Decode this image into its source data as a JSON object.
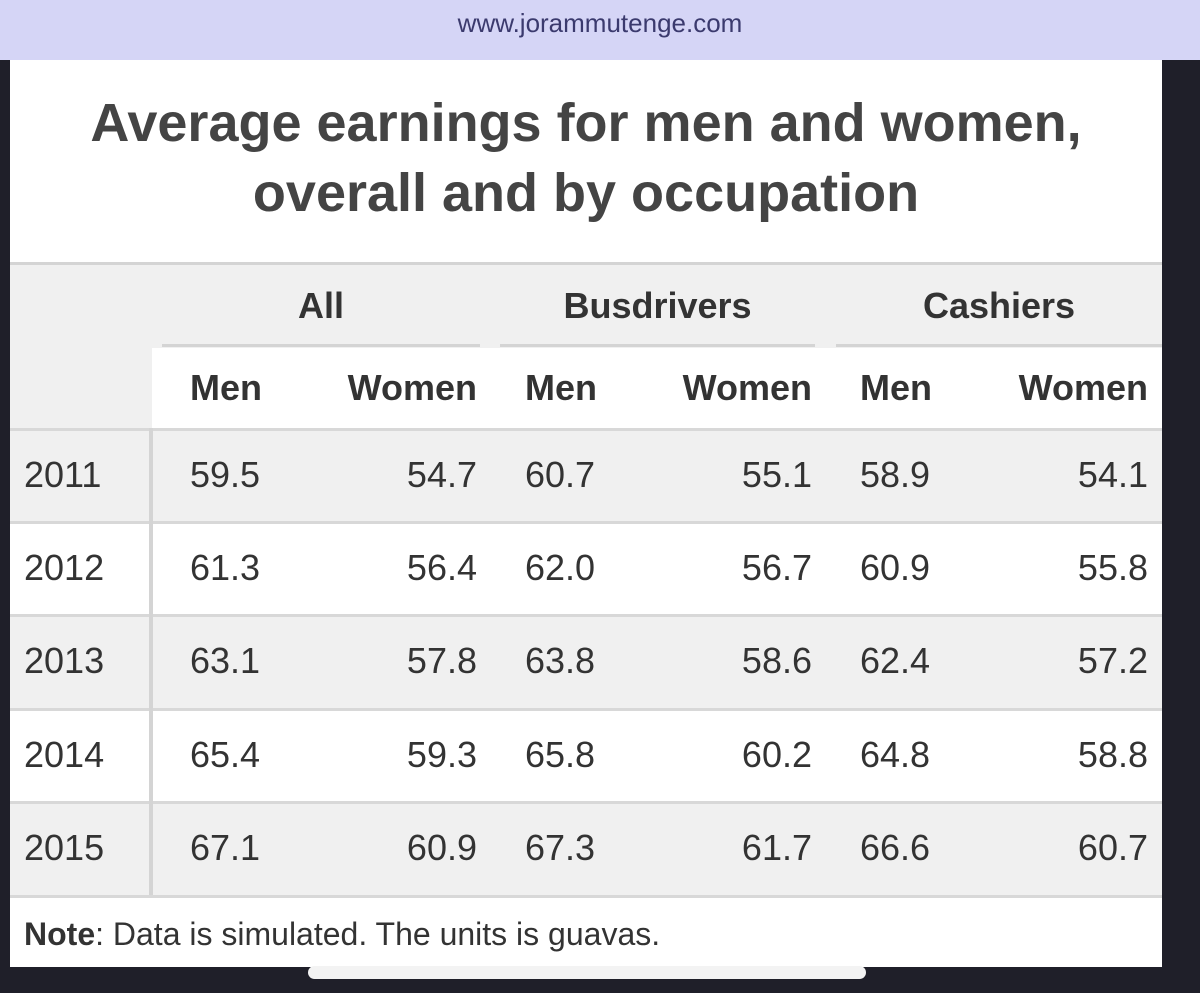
{
  "browser": {
    "url": "www.jorammutenge.com"
  },
  "title": "Average earnings for men and women, overall and by occupation",
  "table": {
    "groups": [
      "All",
      "Busdrivers",
      "Cashiers"
    ],
    "subheaders": [
      "Men",
      "Women",
      "Men",
      "Women",
      "Men",
      "Women"
    ],
    "rows": [
      [
        "2011",
        "59.5",
        "54.7",
        "60.7",
        "55.1",
        "58.9",
        "54.1"
      ],
      [
        "2012",
        "61.3",
        "56.4",
        "62.0",
        "56.7",
        "60.9",
        "55.8"
      ],
      [
        "2013",
        "63.1",
        "57.8",
        "63.8",
        "58.6",
        "62.4",
        "57.2"
      ],
      [
        "2014",
        "65.4",
        "59.3",
        "65.8",
        "60.2",
        "64.8",
        "58.8"
      ],
      [
        "2015",
        "67.1",
        "60.9",
        "67.3",
        "61.7",
        "66.6",
        "60.7"
      ]
    ]
  },
  "note": {
    "label": "Note",
    "text": ": Data is simulated. The units is guavas."
  }
}
